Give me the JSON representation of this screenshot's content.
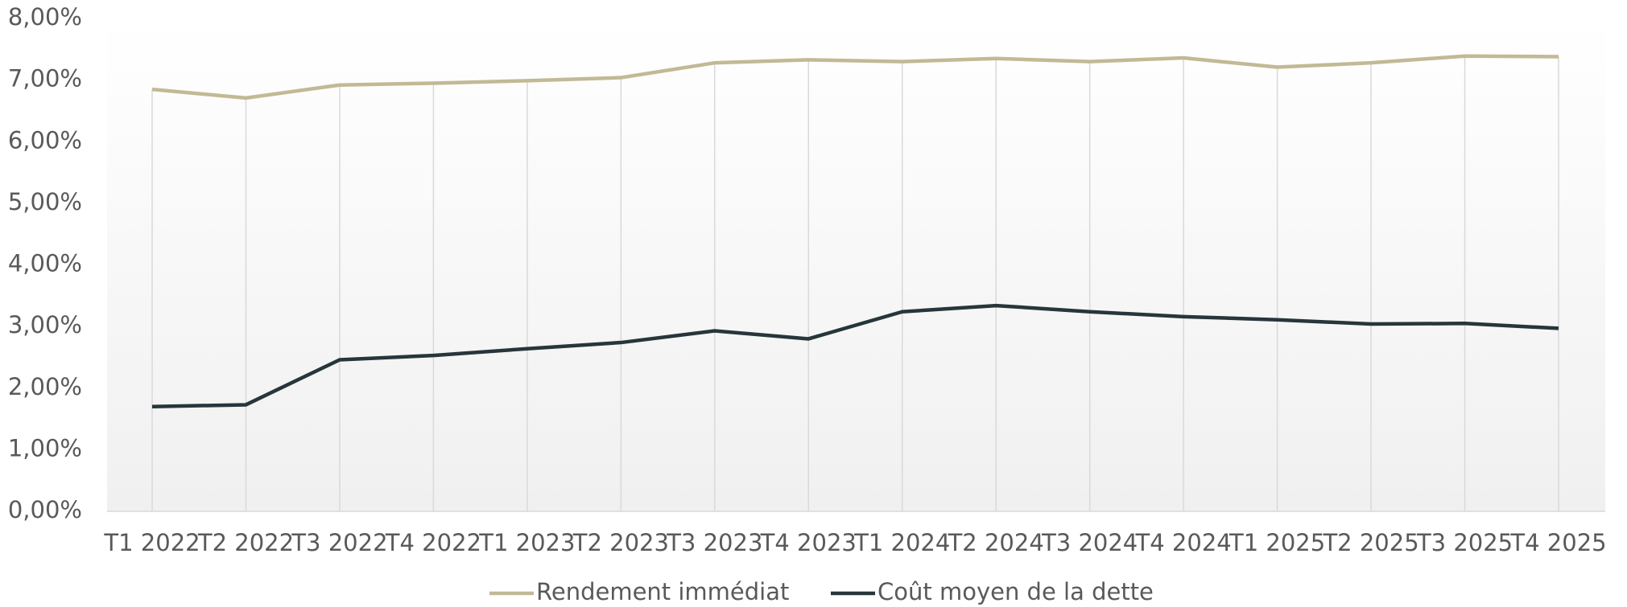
{
  "chart_data": {
    "type": "line",
    "categories": [
      "T1 2022",
      "T2 2022",
      "T3 2022",
      "T4 2022",
      "T1 2023",
      "T2 2023",
      "T3 2023",
      "T4 2023",
      "T1 2024",
      "T2 2024",
      "T3 2024",
      "T4 2024",
      "T1 2025",
      "T2 2025",
      "T3 2025",
      "T4 2025"
    ],
    "series": [
      {
        "name": "Rendement immédiat",
        "color": "#c2b995",
        "values": [
          6.85,
          6.71,
          6.92,
          6.95,
          6.99,
          7.04,
          7.28,
          7.33,
          7.3,
          7.35,
          7.3,
          7.36,
          7.21,
          7.28,
          7.39,
          7.38
        ]
      },
      {
        "name": "Coût moyen de la dette",
        "color": "#26363b",
        "values": [
          1.7,
          1.73,
          2.46,
          2.53,
          2.64,
          2.74,
          2.93,
          2.8,
          3.24,
          3.34,
          3.24,
          3.16,
          3.11,
          3.04,
          3.05,
          2.97
        ]
      }
    ],
    "ylim": [
      0,
      8
    ],
    "yticks": [
      {
        "value": 0,
        "label": "0,00%"
      },
      {
        "value": 1,
        "label": "1,00%"
      },
      {
        "value": 2,
        "label": "2,00%"
      },
      {
        "value": 3,
        "label": "3,00%"
      },
      {
        "value": 4,
        "label": "4,00%"
      },
      {
        "value": 5,
        "label": "5,00%"
      },
      {
        "value": 6,
        "label": "6,00%"
      },
      {
        "value": 7,
        "label": "7,00%"
      },
      {
        "value": 8,
        "label": "8,00%"
      }
    ],
    "legend": "bottom"
  }
}
